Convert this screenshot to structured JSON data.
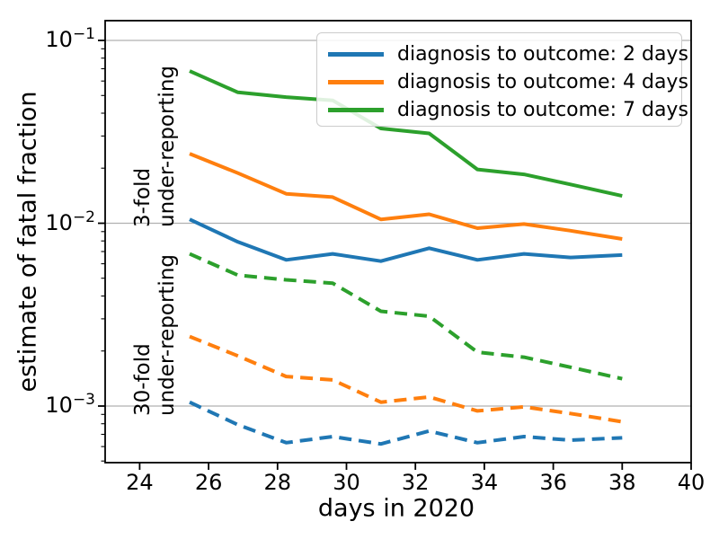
{
  "chart_data": {
    "type": "line",
    "title": "",
    "xlabel": "days in 2020",
    "ylabel": "estimate of fatal fraction",
    "yscale": "log",
    "xlim": [
      23.0,
      40.0
    ],
    "ylim": [
      0.00049,
      0.1283
    ],
    "x_ticks": [
      24,
      26,
      28,
      30,
      32,
      34,
      36,
      38,
      40
    ],
    "y_major_ticks_exponents": [
      -1,
      -2,
      -3
    ],
    "grid": {
      "axis": "y",
      "which": "major",
      "color": "#b0b0b0"
    },
    "x": [
      25.45,
      26.85,
      28.25,
      29.6,
      31.0,
      32.4,
      33.8,
      35.15,
      36.5,
      38.0
    ],
    "series": [
      {
        "name": "diagnosis to outcome: 2 days",
        "group": "3-fold under-reporting",
        "color": "#1f77b4",
        "dash": "solid",
        "values": [
          0.0105,
          0.0079,
          0.0063,
          0.0068,
          0.0062,
          0.0073,
          0.0063,
          0.0068,
          0.0065,
          0.0067
        ]
      },
      {
        "name": "diagnosis to outcome: 4 days",
        "group": "3-fold under-reporting",
        "color": "#ff7f0e",
        "dash": "solid",
        "values": [
          0.024,
          0.0188,
          0.0145,
          0.0139,
          0.0105,
          0.0112,
          0.0094,
          0.0099,
          0.0091,
          0.0082
        ]
      },
      {
        "name": "diagnosis to outcome: 7 days",
        "group": "3-fold under-reporting",
        "color": "#2ca02c",
        "dash": "solid",
        "values": [
          0.068,
          0.052,
          0.049,
          0.047,
          0.033,
          0.031,
          0.0197,
          0.0185,
          0.0163,
          0.0141
        ]
      },
      {
        "name": "diagnosis to outcome: 2 days",
        "group": "30-fold under-reporting",
        "color": "#1f77b4",
        "dash": "dashed",
        "values": [
          0.00105,
          0.00079,
          0.00063,
          0.00068,
          0.00062,
          0.00073,
          0.00063,
          0.00068,
          0.00065,
          0.00067
        ]
      },
      {
        "name": "diagnosis to outcome: 4 days",
        "group": "30-fold under-reporting",
        "color": "#ff7f0e",
        "dash": "dashed",
        "values": [
          0.0024,
          0.00188,
          0.00145,
          0.00139,
          0.00105,
          0.00112,
          0.00094,
          0.00099,
          0.00091,
          0.00082
        ]
      },
      {
        "name": "diagnosis to outcome: 7 days",
        "group": "30-fold under-reporting",
        "color": "#2ca02c",
        "dash": "dashed",
        "values": [
          0.0068,
          0.0052,
          0.0049,
          0.0047,
          0.0033,
          0.0031,
          0.00197,
          0.00185,
          0.00163,
          0.00141
        ]
      }
    ],
    "legend": {
      "position": "upper right",
      "entries": [
        {
          "label": "diagnosis to outcome: 2 days",
          "color": "#1f77b4"
        },
        {
          "label": "diagnosis to outcome: 4 days",
          "color": "#ff7f0e"
        },
        {
          "label": "diagnosis to outcome: 7 days",
          "color": "#2ca02c"
        }
      ]
    },
    "annotations": [
      {
        "text_lines": [
          "3-fold",
          "under-reporting"
        ],
        "rotation_deg": 90
      },
      {
        "text_lines": [
          "30-fold",
          "under-reporting"
        ],
        "rotation_deg": 90
      }
    ]
  }
}
